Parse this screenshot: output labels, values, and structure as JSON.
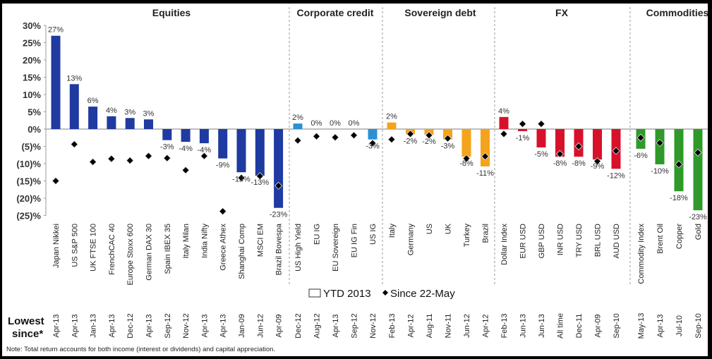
{
  "chart_data": {
    "type": "bar",
    "ylabel": "",
    "xlabel": "",
    "ylim": [
      -25,
      30
    ],
    "yticks": [
      30,
      25,
      20,
      15,
      10,
      5,
      0,
      -5,
      -10,
      -15,
      -20,
      -25
    ],
    "ytick_labels": [
      "30%",
      "25%",
      "20%",
      "15%",
      "10%",
      "5%",
      "0%",
      "(5)%",
      "(10)%",
      "(15)%",
      "(20)%",
      "(25)%"
    ],
    "grid": false,
    "legend": {
      "position": "bottom-center",
      "entries": [
        {
          "name": "YTD 2013",
          "marker": "bar"
        },
        {
          "name": "Since 22-May",
          "marker": "diamond"
        }
      ]
    },
    "lowest_since_label": "Lowest since*",
    "note": "Note: Total return accounts for both income (interest or dividends) and capital appreciation.",
    "groups": [
      {
        "name": "Equities",
        "color": "#1f3aa0",
        "categories": [
          "Japan Nikkei",
          "US S&P 500",
          "UK FTSE 100",
          "FrenchCAC 40",
          "Europe Stoxx 600",
          "German DAX 30",
          "Spain IBEX 35",
          "Italy Milan",
          "India Nifty",
          "Greece Athex",
          "Shanghai Comp",
          "MSCI EM",
          "Brazil Bovespa"
        ],
        "ytd_2013": [
          27,
          13,
          6.5,
          3.7,
          3.2,
          2.8,
          -3.2,
          -3.7,
          -4.1,
          -8.5,
          -12.5,
          -13.5,
          -22.8
        ],
        "ytd_labels": [
          "27%",
          "13%",
          "6%",
          "4%",
          "3%",
          "3%",
          "-3%",
          "-4%",
          "-4%",
          "-9%",
          "-13%",
          "-13%",
          "-23%"
        ],
        "since_22_may": [
          -15,
          -4.4,
          -9.5,
          -8.6,
          -9.1,
          -7.8,
          -8.4,
          -11.9,
          -7.8,
          -23.8,
          -14.1,
          -13.6,
          -16.4
        ],
        "lowest_since": [
          "Apr-13",
          "Apr-13",
          "Jan-13",
          "Apr-13",
          "Dec-12",
          "Apr-13",
          "Sep-12",
          "Nov-12",
          "Apr-13",
          "Apr-13",
          "Jan-09",
          "Jun-12",
          "Apr-09"
        ]
      },
      {
        "name": "Corporate credit",
        "color": "#2d8fd5",
        "categories": [
          "US High Yield",
          "EU IG",
          "EU Sovereign",
          "EU IG Fin",
          "US IG"
        ],
        "ytd_2013": [
          1.6,
          0,
          0,
          0,
          -3
        ],
        "ytd_labels": [
          "2%",
          "0%",
          "0%",
          "0%",
          "-3%"
        ],
        "since_22_may": [
          -3.3,
          -2.1,
          -2.4,
          -1.8,
          -4.1
        ],
        "lowest_since": [
          "Dec-12",
          "Aug-12",
          "Apr-13",
          "Sep-12",
          "Nov-12"
        ]
      },
      {
        "name": "Sovereign debt",
        "color": "#f5a31a",
        "categories": [
          "Italy",
          "Germany",
          "US",
          "UK",
          "Turkey",
          "Brazil"
        ],
        "ytd_2013": [
          1.9,
          -1.5,
          -1.6,
          -3,
          -8,
          -10.8
        ],
        "ytd_labels": [
          "2%",
          "-2%",
          "-2%",
          "-3%",
          "-8%",
          "-11%"
        ],
        "since_22_may": [
          -3,
          -1.4,
          -1.8,
          -2.7,
          -8.5,
          -7.9
        ],
        "lowest_since": [
          "Feb-13",
          "Apr-12",
          "Aug-11",
          "Nov-11",
          "Jun-12",
          "Apr-12"
        ]
      },
      {
        "name": "FX",
        "color": "#d8112b",
        "categories": [
          "Dollar Index",
          "EUR USD",
          "GBP USD",
          "INR USD",
          "TRY USD",
          "BRL USD",
          "AUD USD"
        ],
        "ytd_2013": [
          3.5,
          -0.6,
          -5.3,
          -8,
          -8,
          -8.8,
          -11.5
        ],
        "ytd_labels": [
          "4%",
          "-1%",
          "-5%",
          "-8%",
          "-8%",
          "-9%",
          "-12%"
        ],
        "since_22_may": [
          -1.4,
          1.5,
          1.5,
          -7.2,
          -5,
          -9.3,
          -6.3
        ],
        "lowest_since": [
          "Feb-13",
          "Jun-13",
          "Jun-13",
          "All time",
          "Dec-11",
          "Apr-09",
          "Sep-10"
        ]
      },
      {
        "name": "Commodities",
        "color": "#2f9a2a",
        "categories": [
          "Commodity Index",
          "Brent Oil",
          "Copper",
          "Gold"
        ],
        "ytd_2013": [
          -5.7,
          -10.2,
          -18,
          -23.5
        ],
        "ytd_labels": [
          "-6%",
          "-10%",
          "-18%",
          "-23%"
        ],
        "since_22_may": [
          -2.5,
          -4,
          -10.2,
          -6.8
        ],
        "lowest_since": [
          "May-13",
          "Apr-13",
          "Jul-10",
          "Sep-10"
        ]
      }
    ]
  }
}
